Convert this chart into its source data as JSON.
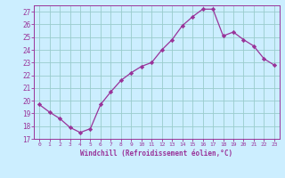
{
  "x": [
    0,
    1,
    2,
    3,
    4,
    5,
    6,
    7,
    8,
    9,
    10,
    11,
    12,
    13,
    14,
    15,
    16,
    17,
    18,
    19,
    20,
    21,
    22,
    23
  ],
  "y": [
    19.7,
    19.1,
    18.6,
    17.9,
    17.5,
    17.8,
    19.7,
    20.7,
    21.6,
    22.2,
    22.7,
    23.0,
    24.0,
    24.8,
    25.9,
    26.6,
    27.2,
    27.2,
    25.1,
    25.4,
    24.8,
    24.3,
    23.3,
    22.8
  ],
  "line_color": "#993399",
  "marker": "D",
  "marker_size": 2.2,
  "bg_color": "#cceeff",
  "grid_color": "#99cccc",
  "tick_color": "#993399",
  "xlabel": "Windchill (Refroidissement éolien,°C)",
  "ylim": [
    17,
    27.5
  ],
  "xlim": [
    -0.5,
    23.5
  ],
  "yticks": [
    17,
    18,
    19,
    20,
    21,
    22,
    23,
    24,
    25,
    26,
    27
  ],
  "xticks": [
    0,
    1,
    2,
    3,
    4,
    5,
    6,
    7,
    8,
    9,
    10,
    11,
    12,
    13,
    14,
    15,
    16,
    17,
    18,
    19,
    20,
    21,
    22,
    23
  ]
}
